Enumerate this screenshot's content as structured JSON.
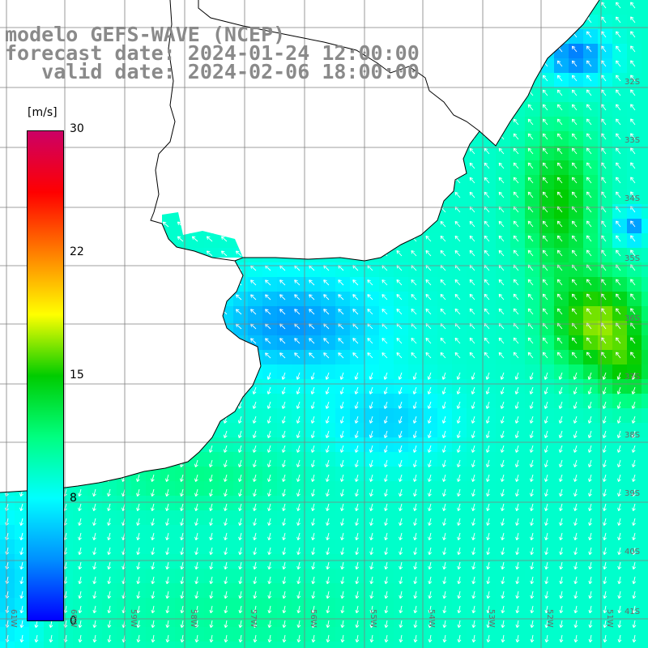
{
  "title": {
    "line1": "modelo GEFS-WAVE (NCEP)",
    "line2": "forecast date: 2024-01-24 12:00:00",
    "line3": "   valid date: 2024-02-06 18:00:00"
  },
  "colorbar": {
    "unit": "[m/s]",
    "ticks": [
      "30",
      "22",
      "15",
      "8",
      "0"
    ],
    "tick_values": [
      30,
      22,
      15,
      8,
      0
    ],
    "range": [
      0,
      30
    ],
    "colors": [
      "#0000ff",
      "#0090ff",
      "#00ffff",
      "#00ff80",
      "#00cc00",
      "#ffff00",
      "#ff8000",
      "#ff0000",
      "#cc0066"
    ]
  },
  "map": {
    "lat_labels": [
      "32S",
      "33S",
      "34S",
      "35S",
      "36S",
      "37S",
      "38S",
      "39S",
      "40S",
      "41S"
    ],
    "lon_labels": [
      "61W",
      "60W",
      "59W",
      "58W",
      "57W",
      "56W",
      "55W",
      "54W",
      "53W",
      "52W",
      "51W"
    ],
    "grid_color": "#808080",
    "coast_color": "#000000",
    "arrow_color": "#ffffff"
  }
}
